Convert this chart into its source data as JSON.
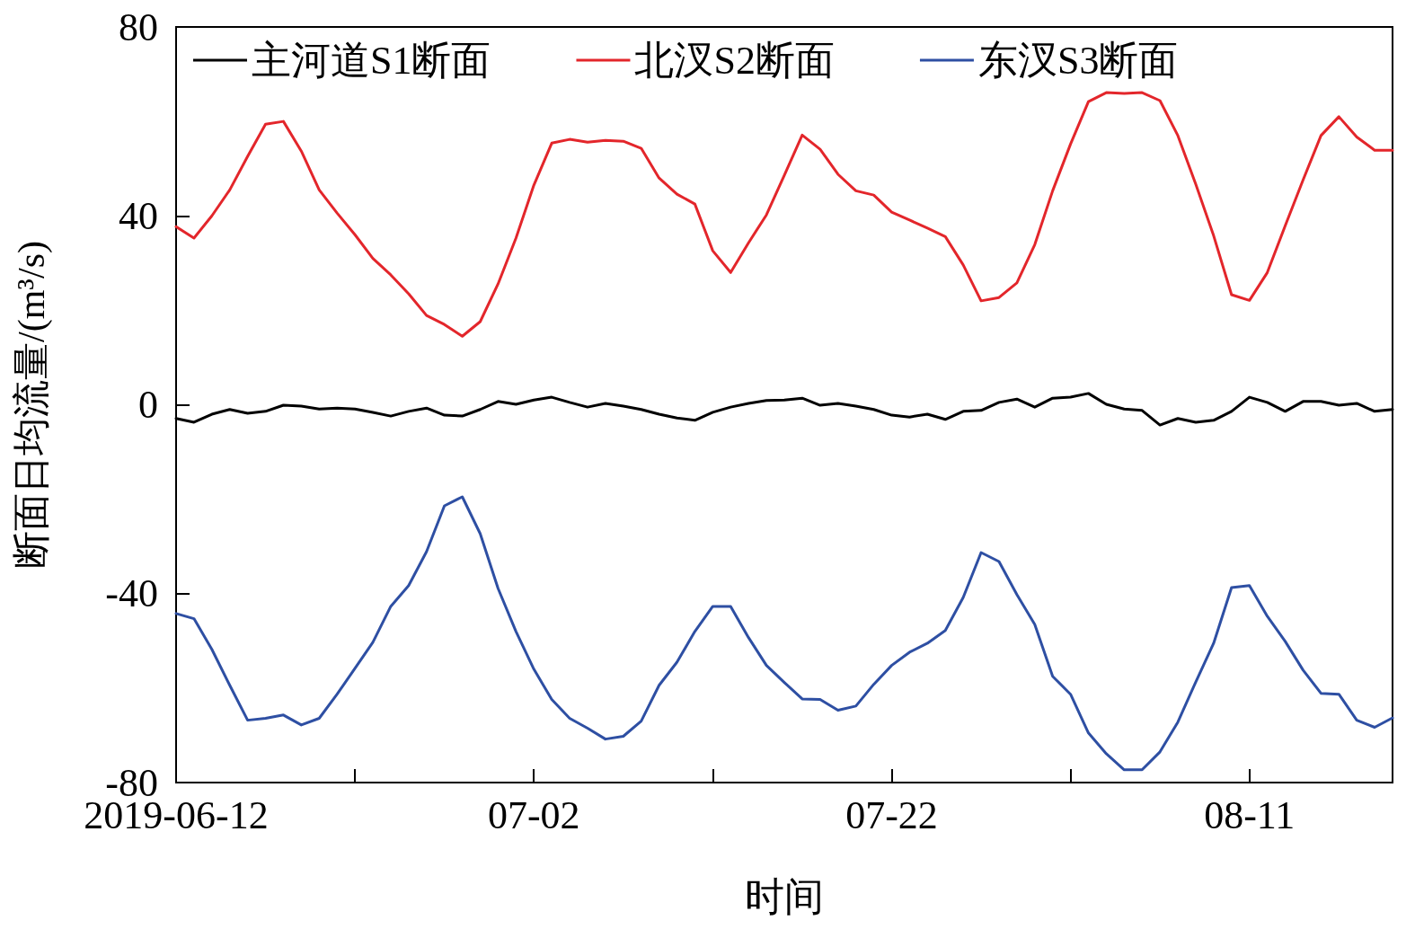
{
  "chart_data": {
    "type": "line",
    "xlabel": "时间",
    "ylabel": "断面日均流量/(m³/s)",
    "x": [
      "2019-06-12",
      "2019-06-13",
      "2019-06-14",
      "2019-06-15",
      "2019-06-16",
      "2019-06-17",
      "2019-06-18",
      "2019-06-19",
      "2019-06-20",
      "2019-06-21",
      "2019-06-22",
      "2019-06-23",
      "2019-06-24",
      "2019-06-25",
      "2019-06-26",
      "2019-06-27",
      "2019-06-28",
      "2019-06-29",
      "2019-06-30",
      "2019-07-01",
      "2019-07-02",
      "2019-07-03",
      "2019-07-04",
      "2019-07-05",
      "2019-07-06",
      "2019-07-07",
      "2019-07-08",
      "2019-07-09",
      "2019-07-10",
      "2019-07-11",
      "2019-07-12",
      "2019-07-13",
      "2019-07-14",
      "2019-07-15",
      "2019-07-16",
      "2019-07-17",
      "2019-07-18",
      "2019-07-19",
      "2019-07-20",
      "2019-07-21",
      "2019-07-22",
      "2019-07-23",
      "2019-07-24",
      "2019-07-25",
      "2019-07-26",
      "2019-07-27",
      "2019-07-28",
      "2019-07-29",
      "2019-07-30",
      "2019-07-31",
      "2019-08-01",
      "2019-08-02",
      "2019-08-03",
      "2019-08-04",
      "2019-08-05",
      "2019-08-06",
      "2019-08-07",
      "2019-08-08",
      "2019-08-09",
      "2019-08-10",
      "2019-08-11",
      "2019-08-12",
      "2019-08-13",
      "2019-08-14",
      "2019-08-15",
      "2019-08-16",
      "2019-08-17",
      "2019-08-18",
      "2019-08-19"
    ],
    "series": [
      {
        "name": "主河道S1断面",
        "color": "#000000",
        "values": [
          -2.9,
          -3.7,
          -2,
          -1,
          -1.8,
          -1.4,
          -0.1,
          -0.3,
          -0.9,
          -0.7,
          -0.9,
          -1.6,
          -2.4,
          -1.4,
          -0.7,
          -2.2,
          -2.4,
          -1,
          0.7,
          0.1,
          1,
          1.6,
          0.5,
          -0.5,
          0.3,
          -0.3,
          -1,
          -2,
          -2.8,
          -3.3,
          -1.6,
          -0.5,
          0.3,
          0.9,
          1,
          1.4,
          -0.1,
          0.3,
          -0.3,
          -1,
          -2.2,
          -2.6,
          -2,
          -3.1,
          -1.4,
          -1.2,
          0.5,
          1.2,
          -0.5,
          1.4,
          1.6,
          2.4,
          0.1,
          -0.9,
          -1.2,
          -4.3,
          -2.9,
          -3.7,
          -3.3,
          -1.4,
          1.6,
          0.5,
          -1.4,
          0.7,
          0.7,
          -0.1,
          0.3,
          -1.4,
          -1
        ]
      },
      {
        "name": "北汊S2断面",
        "color": "#e3262b",
        "values": [
          37.7,
          35.3,
          40,
          45.5,
          52.6,
          59.4,
          60,
          53.7,
          45.5,
          40.6,
          36,
          31,
          27.5,
          23.5,
          18.9,
          17,
          14.5,
          17.6,
          25.6,
          35.3,
          46.5,
          55.4,
          56.2,
          55.6,
          56,
          55.8,
          54.3,
          48,
          44.6,
          42.5,
          32.6,
          28,
          34.3,
          40.2,
          48.6,
          57.1,
          54.1,
          48.8,
          45.3,
          44.4,
          40.8,
          39.1,
          37.4,
          35.6,
          29.6,
          22,
          22.7,
          25.8,
          33.9,
          45.3,
          55.2,
          64.2,
          66.1,
          65.9,
          66.1,
          64.4,
          57,
          46.7,
          35.8,
          23.3,
          22.1,
          28,
          37.9,
          47.6,
          57,
          61,
          56.7,
          53.9,
          53.9
        ]
      },
      {
        "name": "东汊S3断面",
        "color": "#2e4fa3",
        "values": [
          -44.2,
          -45.3,
          -51.8,
          -59.4,
          -66.8,
          -66.4,
          -65.7,
          -67.8,
          -66.4,
          -61.3,
          -55.8,
          -50.3,
          -42.7,
          -38.3,
          -31.1,
          -21.4,
          -19.5,
          -27.3,
          -38.9,
          -48,
          -56,
          -62.4,
          -66.4,
          -68.5,
          -70.8,
          -70.2,
          -67,
          -59.4,
          -54.5,
          -48,
          -42.7,
          -42.7,
          -49.3,
          -55.2,
          -58.8,
          -62.3,
          -62.4,
          -64.7,
          -63.8,
          -59.2,
          -55.2,
          -52.4,
          -50.5,
          -47.8,
          -40.8,
          -31.3,
          -33.2,
          -40.2,
          -46.5,
          -57.5,
          -61.3,
          -69.5,
          -73.9,
          -77.3,
          -77.3,
          -73.5,
          -67.2,
          -58.7,
          -50.5,
          -38.7,
          -38.3,
          -44.8,
          -50.1,
          -56.2,
          -61.1,
          -61.3,
          -66.8,
          -68.3,
          -66.3
        ]
      }
    ],
    "xlim": [
      "2019-06-12",
      "2019-08-19"
    ],
    "xticks": [
      {
        "value": "2019-06-12",
        "label": "2019-06-12"
      },
      {
        "value": "2019-06-22",
        "label": null
      },
      {
        "value": "2019-07-02",
        "label": "07-02"
      },
      {
        "value": "2019-07-12",
        "label": null
      },
      {
        "value": "2019-07-22",
        "label": "07-22"
      },
      {
        "value": "2019-08-01",
        "label": null
      },
      {
        "value": "2019-08-11",
        "label": "08-11"
      }
    ],
    "ylim": [
      -80,
      80
    ],
    "yticks": [
      -80,
      -40,
      0,
      40,
      80
    ],
    "grid": false,
    "legend": "top",
    "marker": "none",
    "line_style": "solid"
  }
}
